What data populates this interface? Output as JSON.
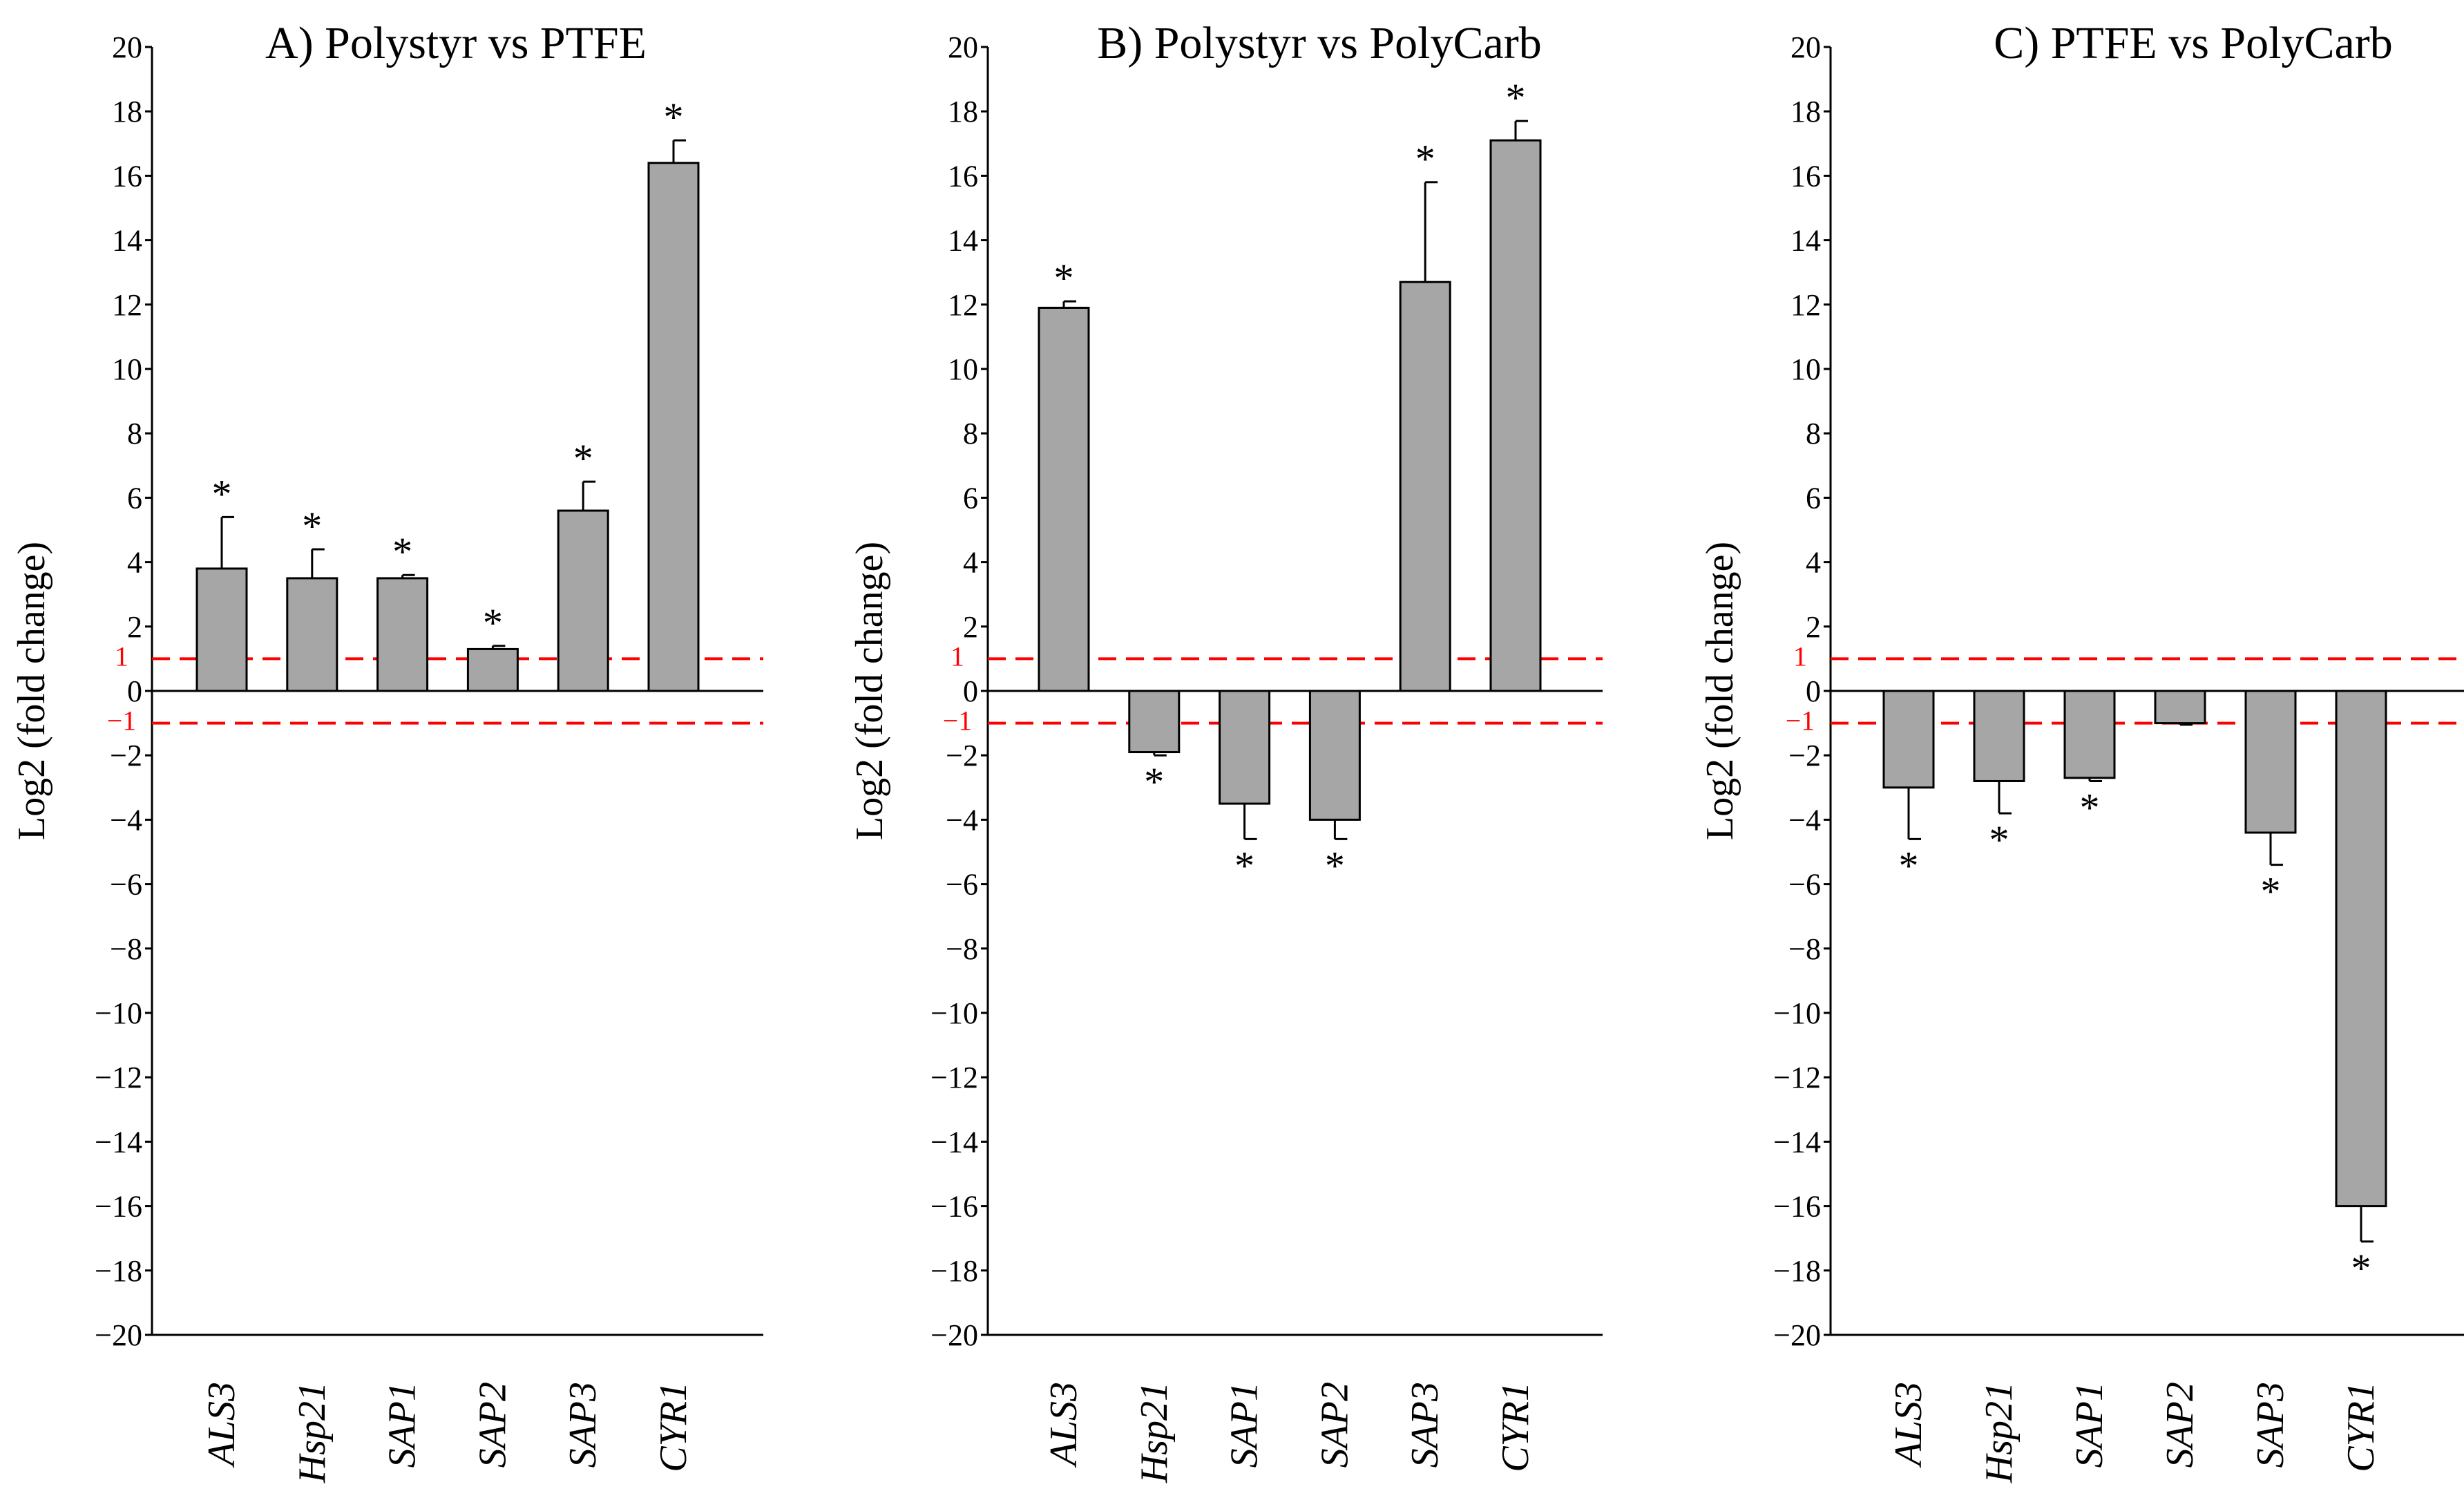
{
  "figure": {
    "colors": {
      "bar_fill": "#a6a6a6",
      "bar_stroke": "#000000",
      "axis": "#000000",
      "reference_line": "#ff0000"
    },
    "significance_marker": "*"
  },
  "chart_data": [
    {
      "type": "bar",
      "panel": "A",
      "title": "A)  Polystyr vs PTFE",
      "ylabel": "Log2 (fold change)",
      "xlabel": "",
      "ylim": [
        -20,
        20
      ],
      "yticks": [
        20,
        18,
        16,
        14,
        12,
        10,
        8,
        6,
        4,
        2,
        0,
        -2,
        -4,
        -6,
        -8,
        -10,
        -12,
        -14,
        -16,
        -18,
        -20
      ],
      "ytick_labels": [
        "20",
        "18",
        "16",
        "14",
        "12",
        "10",
        "8",
        "6",
        "4",
        "2",
        "0",
        "−2",
        "−4",
        "−6",
        "−8",
        "−10",
        "−12",
        "−14",
        "−16",
        "−18",
        "−20"
      ],
      "categories": [
        "ALS3",
        "Hsp21",
        "SAP1",
        "SAP2",
        "SAP3",
        "CYR1"
      ],
      "values": [
        3.8,
        3.5,
        3.5,
        1.3,
        5.6,
        16.4
      ],
      "error": [
        1.6,
        0.9,
        0.1,
        0.1,
        0.9,
        0.7
      ],
      "significant": [
        true,
        true,
        true,
        true,
        true,
        true
      ],
      "reference_lines": [
        {
          "value": 1,
          "label": "1"
        },
        {
          "value": -1,
          "label": "−1"
        }
      ],
      "grid": false
    },
    {
      "type": "bar",
      "panel": "B",
      "title": "B) Polystyr vs PolyCarb",
      "ylabel": "Log2 (fold change)",
      "xlabel": "",
      "ylim": [
        -20,
        20
      ],
      "yticks": [
        20,
        18,
        16,
        14,
        12,
        10,
        8,
        6,
        4,
        2,
        0,
        -2,
        -4,
        -6,
        -8,
        -10,
        -12,
        -14,
        -16,
        -18,
        -20
      ],
      "ytick_labels": [
        "20",
        "18",
        "16",
        "14",
        "12",
        "10",
        "8",
        "6",
        "4",
        "2",
        "0",
        "−2",
        "−4",
        "−6",
        "−8",
        "−10",
        "−12",
        "−14",
        "−16",
        "−18",
        "−20"
      ],
      "categories": [
        "ALS3",
        "Hsp21",
        "SAP1",
        "SAP2",
        "SAP3",
        "CYR1"
      ],
      "values": [
        11.9,
        -1.9,
        -3.5,
        -4.0,
        12.7,
        17.1
      ],
      "error": [
        0.2,
        0.1,
        1.1,
        0.6,
        3.1,
        0.6
      ],
      "significant": [
        true,
        true,
        true,
        true,
        true,
        true
      ],
      "reference_lines": [
        {
          "value": 1,
          "label": "1"
        },
        {
          "value": -1,
          "label": "−1"
        }
      ],
      "grid": false
    },
    {
      "type": "bar",
      "panel": "C",
      "title": "C) PTFE vs PolyCarb",
      "ylabel": "Log2 (fold change)",
      "xlabel": "",
      "ylim": [
        -20,
        20
      ],
      "yticks": [
        20,
        18,
        16,
        14,
        12,
        10,
        8,
        6,
        4,
        2,
        0,
        -2,
        -4,
        -6,
        -8,
        -10,
        -12,
        -14,
        -16,
        -18,
        -20
      ],
      "ytick_labels": [
        "20",
        "18",
        "16",
        "14",
        "12",
        "10",
        "8",
        "6",
        "4",
        "2",
        "0",
        "−2",
        "−4",
        "−6",
        "−8",
        "−10",
        "−12",
        "−14",
        "−16",
        "−18",
        "−20"
      ],
      "categories": [
        "ALS3",
        "Hsp21",
        "SAP1",
        "SAP2",
        "SAP3",
        "CYR1"
      ],
      "values": [
        -3.0,
        -2.8,
        -2.7,
        -1.0,
        -4.4,
        -16.0
      ],
      "error": [
        1.6,
        1.0,
        0.1,
        0.05,
        1.0,
        1.1
      ],
      "significant": [
        true,
        true,
        true,
        false,
        true,
        true
      ],
      "reference_lines": [
        {
          "value": 1,
          "label": "1"
        },
        {
          "value": -1,
          "label": "−1"
        }
      ],
      "grid": false
    }
  ]
}
